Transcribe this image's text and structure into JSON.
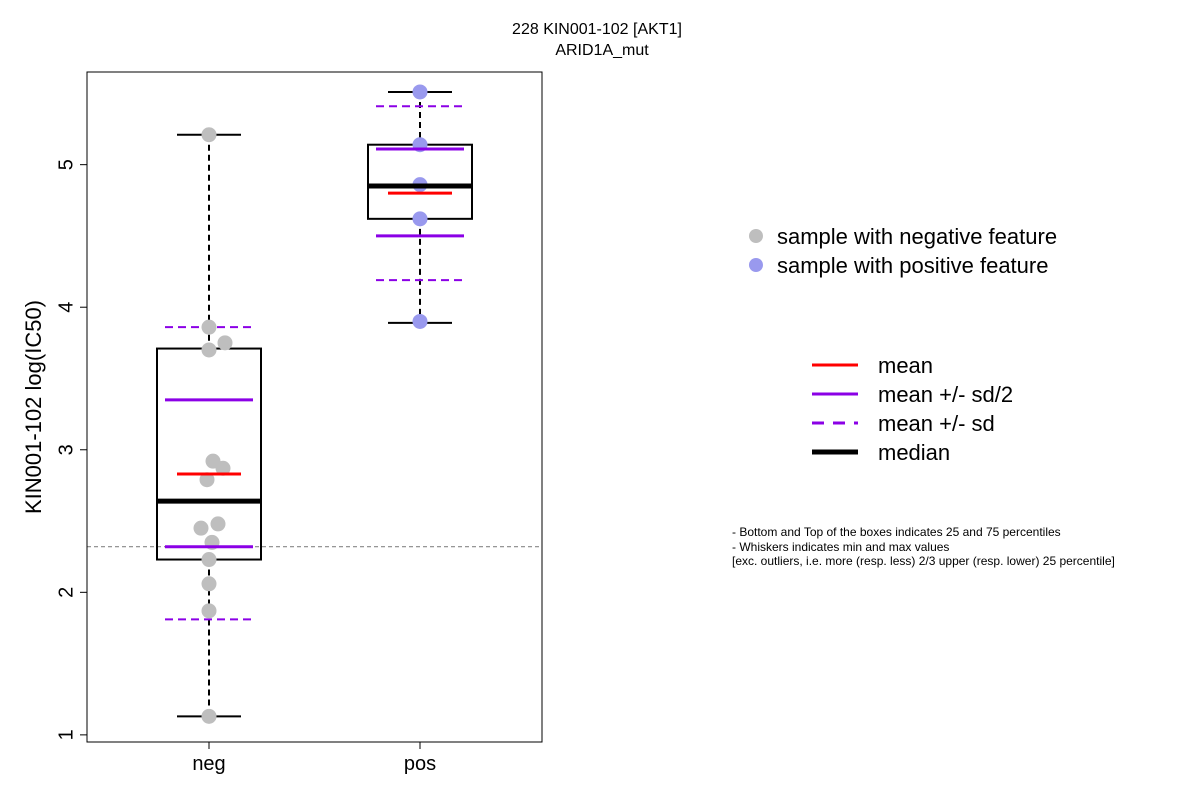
{
  "chart_data": {
    "type": "box",
    "title": "228 KIN001-102 [AKT1]",
    "subtitle": "ARID1A_mut",
    "ylabel": "KIN001-102 log(IC50)",
    "xlabel": "",
    "ylim": [
      0.95,
      5.65
    ],
    "yticks": [
      1,
      2,
      3,
      4,
      5
    ],
    "categories": [
      "neg",
      "pos"
    ],
    "reference_line": 2.32,
    "groups": [
      {
        "name": "neg",
        "points": [
          5.21,
          3.86,
          3.75,
          3.7,
          2.92,
          2.87,
          2.79,
          2.48,
          2.45,
          2.35,
          2.23,
          2.06,
          1.87,
          1.13
        ],
        "color": "#bebebe",
        "min": 1.13,
        "q1": 2.23,
        "median": 2.64,
        "q3": 3.71,
        "max": 5.21,
        "mean": 2.83,
        "sd_half_low": 2.32,
        "sd_half_high": 3.35,
        "sd_low": 1.81,
        "sd_high": 3.86
      },
      {
        "name": "pos",
        "points": [
          5.51,
          5.14,
          4.86,
          4.62,
          3.9
        ],
        "color": "#9999ee",
        "min": 3.89,
        "q1": 4.62,
        "median": 4.85,
        "q3": 5.14,
        "max": 5.51,
        "mean": 4.8,
        "sd_half_low": 4.5,
        "sd_half_high": 5.11,
        "sd_low": 4.19,
        "sd_high": 5.41
      }
    ],
    "colors": {
      "mean": "#ff0000",
      "sd": "#8b00e6",
      "median": "#000000",
      "reference": "#888888"
    },
    "legend_points": [
      {
        "label": "sample with negative feature",
        "color": "#bebebe"
      },
      {
        "label": "sample with positive feature",
        "color": "#9999ee"
      }
    ],
    "legend_lines": [
      {
        "label": "mean",
        "style": "mean"
      },
      {
        "label": "mean +/- sd/2",
        "style": "sd_half"
      },
      {
        "label": "mean +/- sd",
        "style": "sd"
      },
      {
        "label": "median",
        "style": "median"
      }
    ],
    "notes": [
      "- Bottom and Top of the boxes indicates 25 and 75 percentiles",
      "- Whiskers indicates min and max values",
      "[exc. outliers, i.e. more (resp. less) 2/3 upper (resp. lower) 25 percentile]"
    ]
  }
}
